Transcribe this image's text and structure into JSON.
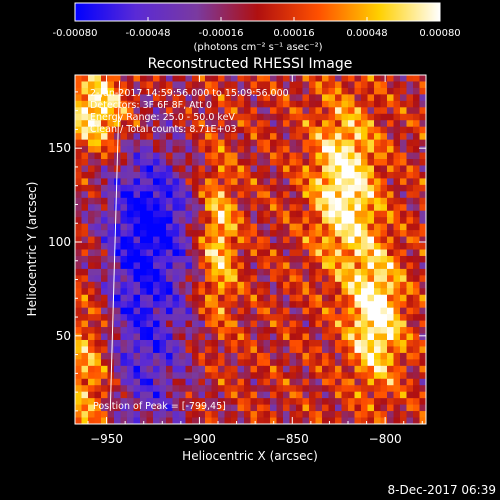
{
  "chart_data": {
    "type": "heatmap",
    "title": "Reconstructed RHESSI Image",
    "xlabel": "Heliocentric X (arcsec)",
    "ylabel": "Heliocentric Y (arcsec)",
    "xlim": [
      -967,
      -778
    ],
    "ylim": [
      3,
      189
    ],
    "x_ticks": [
      -950,
      -900,
      -850,
      -800
    ],
    "y_ticks": [
      50,
      100,
      150
    ],
    "colorbar": {
      "range": [
        -0.0008,
        0.0008
      ],
      "ticks": [
        -0.0008,
        -0.00048,
        -0.00016,
        0.00016,
        0.00048,
        0.0008
      ],
      "tick_labels": [
        "-0.00080",
        "-0.00048",
        "-0.00016",
        "0.00016",
        "0.00048",
        "0.00080"
      ],
      "unit_label": "(photons cm⁻² s⁻¹ asec⁻²)",
      "colors": [
        "#0000ff",
        "#5a2ad6",
        "#7a3aa0",
        "#b01010",
        "#ff5000",
        "#ffd000",
        "#ffffff"
      ]
    },
    "annotations": [
      "2-Jun-2017 14:59:56.000 to 15:09:56.000",
      "Detectors: 3F 6F 8F, Att 0",
      "Energy Range: 25.0 - 50.0 keV",
      "Clean / Total counts: 8.71E+03"
    ],
    "peak_label": "Position of Peak = [-799,45]",
    "peak_position": [
      -799,
      45
    ],
    "limb_line": [
      [
        -943,
        186
      ],
      [
        -948,
        10
      ]
    ],
    "bright_regions": [
      {
        "x": -822,
        "y": 130,
        "sx": 12,
        "sy": 30,
        "amp": 1.0
      },
      {
        "x": -805,
        "y": 60,
        "sx": 10,
        "sy": 25,
        "amp": 1.0
      },
      {
        "x": -890,
        "y": 100,
        "sx": 7,
        "sy": 30,
        "amp": 0.75
      },
      {
        "x": -955,
        "y": 170,
        "sx": 12,
        "sy": 15,
        "amp": 0.95
      },
      {
        "x": -960,
        "y": 30,
        "sx": 10,
        "sy": 30,
        "amp": 0.65
      }
    ],
    "dark_regions": [
      {
        "x": -930,
        "y": 70,
        "sx": 18,
        "sy": 60,
        "amp": -0.85
      },
      {
        "x": -925,
        "y": 115,
        "sx": 15,
        "sy": 20,
        "amp": -0.5
      }
    ]
  },
  "footer": {
    "timestamp": "8-Dec-2017 06:39"
  }
}
